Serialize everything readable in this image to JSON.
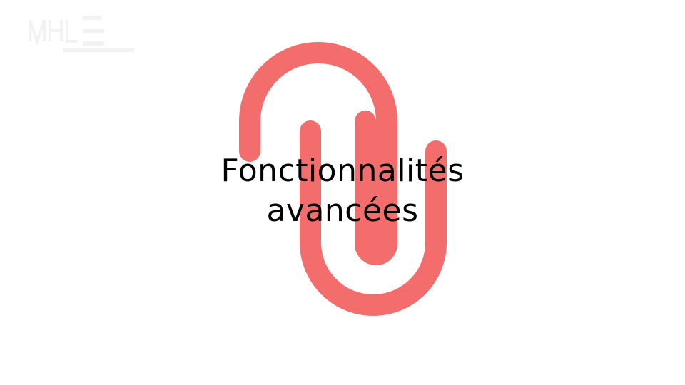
{
  "slide": {
    "title_line1": "Fonctionnalités",
    "title_line2": "avancées"
  },
  "colors": {
    "background": "#ffffff",
    "accent": "#f46d6d",
    "text": "#000000"
  },
  "icons": {
    "main": "paperclip-icon",
    "watermark": "logo-watermark"
  }
}
